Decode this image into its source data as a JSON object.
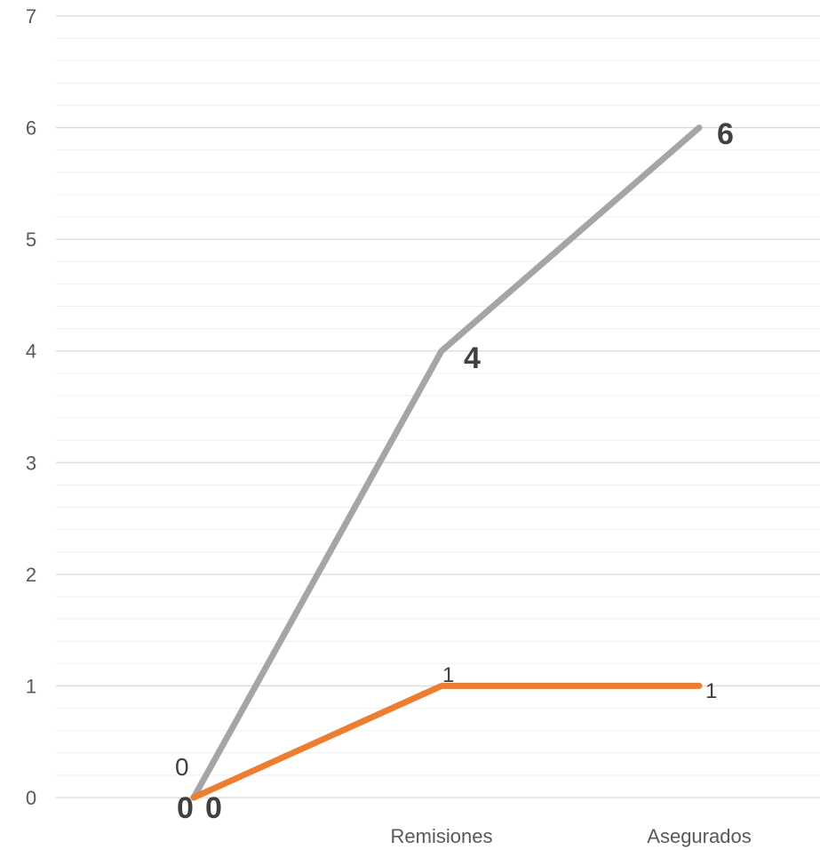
{
  "chart_data": {
    "type": "line",
    "categories": [
      "",
      "Remisiones",
      "Asegurados"
    ],
    "ylim": [
      0,
      7
    ],
    "yticks": [
      "0",
      "1",
      "2",
      "3",
      "4",
      "5",
      "6",
      "7"
    ],
    "grid": true,
    "legend": "none",
    "series": [
      {
        "color": "#a5a5a5",
        "values": [
          0,
          4,
          6
        ],
        "labels": [
          "0",
          "4",
          "6"
        ]
      },
      {
        "color": "#ed7d31",
        "values": [
          0,
          1,
          1
        ],
        "labels": [
          "0",
          "1",
          "1"
        ]
      }
    ],
    "extra_labels": [
      "0"
    ]
  }
}
